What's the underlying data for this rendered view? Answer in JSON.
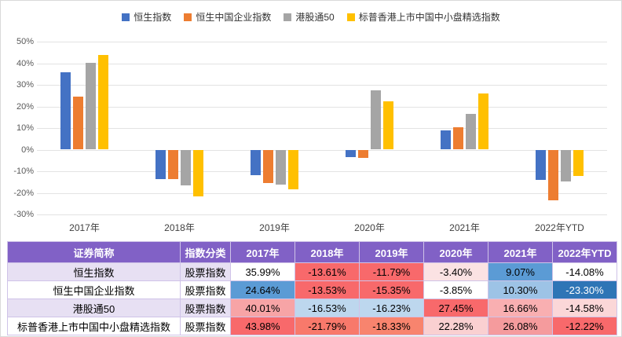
{
  "colors": {
    "header_bg": "#8161C6",
    "band_bg": "#E7E0F3",
    "grid_line": "#E3E3E3",
    "series_blue": "#4472C4",
    "series_orange": "#ED7D31",
    "series_gray": "#A5A5A5",
    "series_yellow": "#FFC000"
  },
  "chart_data": {
    "type": "bar",
    "categories": [
      "2017年",
      "2018年",
      "2019年",
      "2020年",
      "2021年",
      "2022年YTD"
    ],
    "series": [
      {
        "name": "恒生指数",
        "color": "#4472C4",
        "values": [
          35.99,
          -13.61,
          -11.79,
          -3.4,
          9.07,
          -14.08
        ]
      },
      {
        "name": "恒生中国企业指数",
        "color": "#ED7D31",
        "values": [
          24.64,
          -13.53,
          -15.35,
          -3.85,
          10.3,
          -23.3
        ]
      },
      {
        "name": "港股通50",
        "color": "#A5A5A5",
        "values": [
          40.01,
          -16.53,
          -16.23,
          27.45,
          16.66,
          -14.58
        ]
      },
      {
        "name": "标普香港上市中国中小盘精选指数",
        "color": "#FFC000",
        "values": [
          43.98,
          -21.79,
          -18.33,
          22.28,
          26.08,
          -12.22
        ]
      }
    ],
    "yticks": [
      "50%",
      "40%",
      "30%",
      "20%",
      "10%",
      "0%",
      "-10%",
      "-20%",
      "-30%"
    ],
    "ylim": [
      -30,
      50
    ],
    "grid": true,
    "legend_position": "top"
  },
  "table": {
    "headers": [
      "证券简称",
      "指数分类",
      "2017年",
      "2018年",
      "2019年",
      "2020年",
      "2021年",
      "2022年YTD"
    ],
    "rows": [
      {
        "name": "恒生指数",
        "category": "股票指数",
        "band": "#E7E0F3",
        "cells": [
          {
            "v": "35.99%",
            "bg": "#FFFFFF",
            "fg": "#000000"
          },
          {
            "v": "-13.61%",
            "bg": "#F8696B",
            "fg": "#000000"
          },
          {
            "v": "-11.79%",
            "bg": "#F8696B",
            "fg": "#000000"
          },
          {
            "v": "-3.40%",
            "bg": "#FBE2E3",
            "fg": "#000000"
          },
          {
            "v": "9.07%",
            "bg": "#5B9BD5",
            "fg": "#000000"
          },
          {
            "v": "-14.08%",
            "bg": "#FFFFFF",
            "fg": "#000000"
          }
        ]
      },
      {
        "name": "恒生中国企业指数",
        "category": "股票指数",
        "band": "#FFFFFF",
        "cells": [
          {
            "v": "24.64%",
            "bg": "#5B9BD5",
            "fg": "#000000"
          },
          {
            "v": "-13.53%",
            "bg": "#F8696B",
            "fg": "#000000"
          },
          {
            "v": "-15.35%",
            "bg": "#F8696B",
            "fg": "#000000"
          },
          {
            "v": "-3.85%",
            "bg": "#FFFFFF",
            "fg": "#000000"
          },
          {
            "v": "10.30%",
            "bg": "#9DC3E6",
            "fg": "#000000"
          },
          {
            "v": "-23.30%",
            "bg": "#2E75B6",
            "fg": "#FFFFFF"
          }
        ]
      },
      {
        "name": "港股通50",
        "category": "股票指数",
        "band": "#E7E0F3",
        "cells": [
          {
            "v": "40.01%",
            "bg": "#F7A4A6",
            "fg": "#000000"
          },
          {
            "v": "-16.53%",
            "bg": "#BDD7EE",
            "fg": "#000000"
          },
          {
            "v": "-16.23%",
            "bg": "#BDD7EE",
            "fg": "#000000"
          },
          {
            "v": "27.45%",
            "bg": "#F8696B",
            "fg": "#000000"
          },
          {
            "v": "16.66%",
            "bg": "#F9AFB1",
            "fg": "#000000"
          },
          {
            "v": "-14.58%",
            "bg": "#FBD7D8",
            "fg": "#000000"
          }
        ]
      },
      {
        "name": "标普香港上市中国中小盘精选指数",
        "category": "股票指数",
        "band": "#FFFFFF",
        "cells": [
          {
            "v": "43.98%",
            "bg": "#F8696B",
            "fg": "#000000"
          },
          {
            "v": "-21.79%",
            "bg": "#F8796B",
            "fg": "#000000"
          },
          {
            "v": "-18.33%",
            "bg": "#F8846E",
            "fg": "#000000"
          },
          {
            "v": "22.28%",
            "bg": "#FAD0D1",
            "fg": "#000000"
          },
          {
            "v": "26.08%",
            "bg": "#F59B9D",
            "fg": "#000000"
          },
          {
            "v": "-12.22%",
            "bg": "#F8696B",
            "fg": "#000000"
          }
        ]
      }
    ]
  }
}
